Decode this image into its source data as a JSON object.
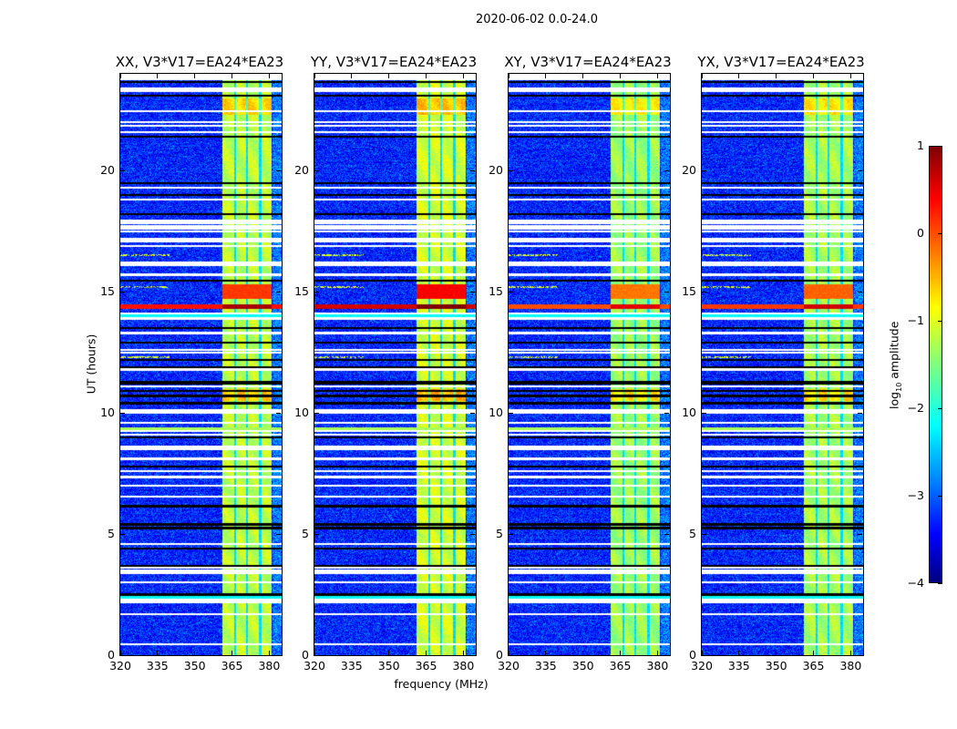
{
  "chart_data": {
    "type": "heatmap",
    "title": "2020-06-02 0.0-24.0",
    "xlabel": "frequency (MHz)",
    "ylabel": "UT (hours)",
    "xlim": [
      320,
      385
    ],
    "ylim": [
      0,
      24
    ],
    "xticks": [
      "320",
      "335",
      "350",
      "365",
      "380"
    ],
    "xtick_values": [
      320,
      335,
      350,
      365,
      380
    ],
    "yticks": [
      "0",
      "5",
      "10",
      "15",
      "20"
    ],
    "ytick_values": [
      0,
      5,
      10,
      15,
      20
    ],
    "panels": [
      {
        "title": "XX, V3*V17=EA24*EA23",
        "band_level": -1.2,
        "rfi_level": 0.5
      },
      {
        "title": "YY, V3*V17=EA24*EA23",
        "band_level": -1.1,
        "rfi_level": 0.8
      },
      {
        "title": "XY, V3*V17=EA24*EA23",
        "band_level": -1.35,
        "rfi_level": 0.2
      },
      {
        "title": "YX, V3*V17=EA24*EA23",
        "band_level": -1.3,
        "rfi_level": 0.3
      }
    ],
    "background_level": -3.2,
    "bright_band_mhz": [
      361.2,
      381.0
    ],
    "subband_gaps_mhz": [
      366.3,
      371.0,
      376.3
    ],
    "flagged_rows_hours": [
      23.4,
      23.3,
      22.45,
      22.0,
      21.85,
      21.6,
      19.3,
      18.8,
      17.95,
      17.85,
      17.7,
      17.6,
      17.5,
      17.2,
      17.1,
      16.9,
      16.2,
      16.1,
      15.7,
      14.1,
      13.9,
      13.3,
      12.6,
      12.5,
      11.8,
      11.1,
      10.1,
      10.0,
      9.6,
      9.25,
      9.1,
      8.6,
      8.5,
      8.1,
      7.6,
      7.35,
      7.0,
      6.55,
      4.6,
      3.6,
      3.5,
      3.4,
      3.0,
      2.3,
      2.2,
      1.7,
      0.45
    ],
    "dropout_rows_hours": [
      23.65,
      23.1,
      21.4,
      19.5,
      19.0,
      18.2,
      15.45,
      13.5,
      12.9,
      12.2,
      11.9,
      11.3,
      11.2,
      10.9,
      10.7,
      10.4,
      9.0,
      7.8,
      6.15,
      5.4,
      5.25,
      4.4,
      3.7,
      2.5
    ],
    "rfi_rows_hours": [
      14.3,
      14.5
    ],
    "colorbar": {
      "label": "log10 amplitude",
      "label_main": "log",
      "label_sub": "10",
      "label_rest": " amplitude",
      "range": [
        -4,
        1
      ],
      "ticks": [
        "1",
        "0",
        "−1",
        "−2",
        "−3",
        "−4"
      ],
      "tick_values": [
        1,
        0,
        -1,
        -2,
        -3,
        -4
      ],
      "colormap": "jet"
    }
  }
}
